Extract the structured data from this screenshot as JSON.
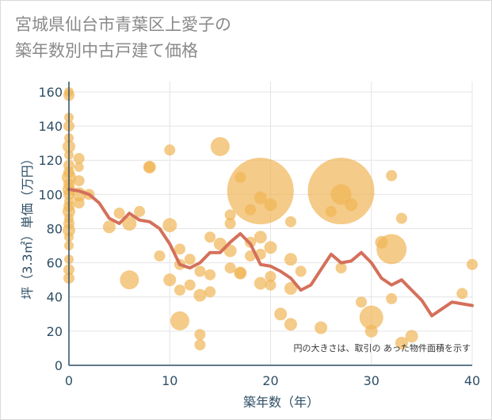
{
  "title": {
    "line1": "宮城県仙台市青葉区上愛子の",
    "line2": "築年数別中古戸建て価格"
  },
  "chart_data": {
    "type": "scatter",
    "title": "宮城県仙台市青葉区上愛子の築年数別中古戸建て価格",
    "xlabel": "築年数（年）",
    "ylabel": "坪（3.3㎡）単価（万円）",
    "xlim": [
      0,
      40
    ],
    "ylim": [
      0,
      166
    ],
    "xticks": [
      0,
      10,
      20,
      30,
      40
    ],
    "yticks": [
      0,
      20,
      40,
      60,
      80,
      100,
      120,
      140,
      160
    ],
    "grid": true,
    "note": "円の大きさは、取引の あった物件面積を示す",
    "colors": {
      "bubble": "#f0b555",
      "line": "#d4705a",
      "axis": "#2f4f66",
      "grid": "#e4e4e4"
    },
    "bubbles": [
      {
        "x": 0,
        "y": 160,
        "r": 6
      },
      {
        "x": 0,
        "y": 158,
        "r": 7
      },
      {
        "x": 0,
        "y": 145,
        "r": 6
      },
      {
        "x": 0,
        "y": 140,
        "r": 7
      },
      {
        "x": 0,
        "y": 133,
        "r": 6
      },
      {
        "x": 0,
        "y": 128,
        "r": 8
      },
      {
        "x": 0,
        "y": 123,
        "r": 6
      },
      {
        "x": 0,
        "y": 117,
        "r": 7
      },
      {
        "x": 0,
        "y": 113,
        "r": 7
      },
      {
        "x": 0,
        "y": 110,
        "r": 9
      },
      {
        "x": 0,
        "y": 106,
        "r": 7
      },
      {
        "x": 0,
        "y": 103,
        "r": 8
      },
      {
        "x": 0,
        "y": 100,
        "r": 7
      },
      {
        "x": 0,
        "y": 96,
        "r": 6
      },
      {
        "x": 0,
        "y": 93,
        "r": 7
      },
      {
        "x": 0,
        "y": 90,
        "r": 8
      },
      {
        "x": 0,
        "y": 86,
        "r": 6
      },
      {
        "x": 0,
        "y": 83,
        "r": 7
      },
      {
        "x": 0,
        "y": 79,
        "r": 8
      },
      {
        "x": 0,
        "y": 75,
        "r": 6
      },
      {
        "x": 0,
        "y": 70,
        "r": 6
      },
      {
        "x": 0,
        "y": 62,
        "r": 6
      },
      {
        "x": 0,
        "y": 56,
        "r": 7
      },
      {
        "x": 0,
        "y": 51,
        "r": 7
      },
      {
        "x": 1,
        "y": 121,
        "r": 7
      },
      {
        "x": 1,
        "y": 116,
        "r": 6
      },
      {
        "x": 1,
        "y": 108,
        "r": 7
      },
      {
        "x": 1,
        "y": 100,
        "r": 9
      },
      {
        "x": 1,
        "y": 95,
        "r": 7
      },
      {
        "x": 2,
        "y": 100,
        "r": 7
      },
      {
        "x": 4,
        "y": 81,
        "r": 8
      },
      {
        "x": 5,
        "y": 89,
        "r": 7
      },
      {
        "x": 6,
        "y": 83,
        "r": 9
      },
      {
        "x": 7,
        "y": 90,
        "r": 7
      },
      {
        "x": 8,
        "y": 116,
        "r": 8
      },
      {
        "x": 8,
        "y": 116,
        "r": 7
      },
      {
        "x": 6,
        "y": 50,
        "r": 12
      },
      {
        "x": 9,
        "y": 64,
        "r": 7
      },
      {
        "x": 10,
        "y": 126,
        "r": 7
      },
      {
        "x": 10,
        "y": 82,
        "r": 9
      },
      {
        "x": 10,
        "y": 50,
        "r": 8
      },
      {
        "x": 11,
        "y": 68,
        "r": 7
      },
      {
        "x": 11,
        "y": 59,
        "r": 7
      },
      {
        "x": 11,
        "y": 44,
        "r": 7
      },
      {
        "x": 11,
        "y": 26,
        "r": 12
      },
      {
        "x": 12,
        "y": 62,
        "r": 7
      },
      {
        "x": 12,
        "y": 47,
        "r": 7
      },
      {
        "x": 13,
        "y": 55,
        "r": 7
      },
      {
        "x": 13,
        "y": 41,
        "r": 8
      },
      {
        "x": 13,
        "y": 18,
        "r": 7
      },
      {
        "x": 13,
        "y": 12,
        "r": 7
      },
      {
        "x": 14,
        "y": 75,
        "r": 7
      },
      {
        "x": 14,
        "y": 53,
        "r": 7
      },
      {
        "x": 14,
        "y": 43,
        "r": 7
      },
      {
        "x": 15,
        "y": 128,
        "r": 12
      },
      {
        "x": 15,
        "y": 71,
        "r": 8
      },
      {
        "x": 16,
        "y": 88,
        "r": 7
      },
      {
        "x": 16,
        "y": 83,
        "r": 7
      },
      {
        "x": 16,
        "y": 67,
        "r": 8
      },
      {
        "x": 16,
        "y": 57,
        "r": 7
      },
      {
        "x": 17,
        "y": 110,
        "r": 7
      },
      {
        "x": 17,
        "y": 54,
        "r": 8
      },
      {
        "x": 17,
        "y": 54,
        "r": 7
      },
      {
        "x": 18,
        "y": 91,
        "r": 7
      },
      {
        "x": 18,
        "y": 72,
        "r": 7
      },
      {
        "x": 18,
        "y": 64,
        "r": 7
      },
      {
        "x": 19,
        "y": 102,
        "r": 42
      },
      {
        "x": 19,
        "y": 98,
        "r": 8
      },
      {
        "x": 19,
        "y": 75,
        "r": 8
      },
      {
        "x": 19,
        "y": 65,
        "r": 7
      },
      {
        "x": 19,
        "y": 48,
        "r": 8
      },
      {
        "x": 20,
        "y": 94,
        "r": 8
      },
      {
        "x": 20,
        "y": 69,
        "r": 8
      },
      {
        "x": 20,
        "y": 52,
        "r": 7
      },
      {
        "x": 20,
        "y": 47,
        "r": 7
      },
      {
        "x": 21,
        "y": 30,
        "r": 8
      },
      {
        "x": 22,
        "y": 84,
        "r": 7
      },
      {
        "x": 22,
        "y": 62,
        "r": 8
      },
      {
        "x": 22,
        "y": 45,
        "r": 8
      },
      {
        "x": 22,
        "y": 24,
        "r": 8
      },
      {
        "x": 23,
        "y": 55,
        "r": 7
      },
      {
        "x": 25,
        "y": 22,
        "r": 8
      },
      {
        "x": 26,
        "y": 90,
        "r": 7
      },
      {
        "x": 27,
        "y": 102,
        "r": 42
      },
      {
        "x": 27,
        "y": 100,
        "r": 13
      },
      {
        "x": 27,
        "y": 57,
        "r": 7
      },
      {
        "x": 28,
        "y": 94,
        "r": 8
      },
      {
        "x": 29,
        "y": 37,
        "r": 7
      },
      {
        "x": 30,
        "y": 28,
        "r": 15
      },
      {
        "x": 30,
        "y": 20,
        "r": 8
      },
      {
        "x": 31,
        "y": 72,
        "r": 8
      },
      {
        "x": 32,
        "y": 111,
        "r": 7
      },
      {
        "x": 32,
        "y": 68,
        "r": 19
      },
      {
        "x": 32,
        "y": 39,
        "r": 7
      },
      {
        "x": 33,
        "y": 86,
        "r": 7
      },
      {
        "x": 33,
        "y": 13,
        "r": 8
      },
      {
        "x": 34,
        "y": 17,
        "r": 8
      },
      {
        "x": 39,
        "y": 42,
        "r": 7
      },
      {
        "x": 40,
        "y": 59,
        "r": 7
      }
    ],
    "series": [
      {
        "type": "line",
        "x": [
          0,
          1,
          2,
          3,
          4,
          5,
          6,
          7,
          8,
          9,
          10,
          11,
          12,
          13,
          14,
          15,
          16,
          17,
          18,
          19,
          20,
          21,
          22,
          23,
          24,
          25,
          26,
          27,
          28,
          29,
          30,
          31,
          32,
          33,
          34,
          35,
          36,
          37,
          38,
          39,
          40
        ],
        "y": [
          103,
          102,
          100,
          95,
          86,
          83,
          89,
          85,
          84,
          80,
          71,
          59,
          57,
          60,
          66,
          66,
          72,
          77,
          71,
          59,
          58,
          55,
          51,
          44,
          47,
          56,
          65,
          60,
          61,
          66,
          60,
          51,
          47,
          50,
          44,
          38,
          29,
          33,
          37,
          36,
          35
        ]
      }
    ]
  }
}
